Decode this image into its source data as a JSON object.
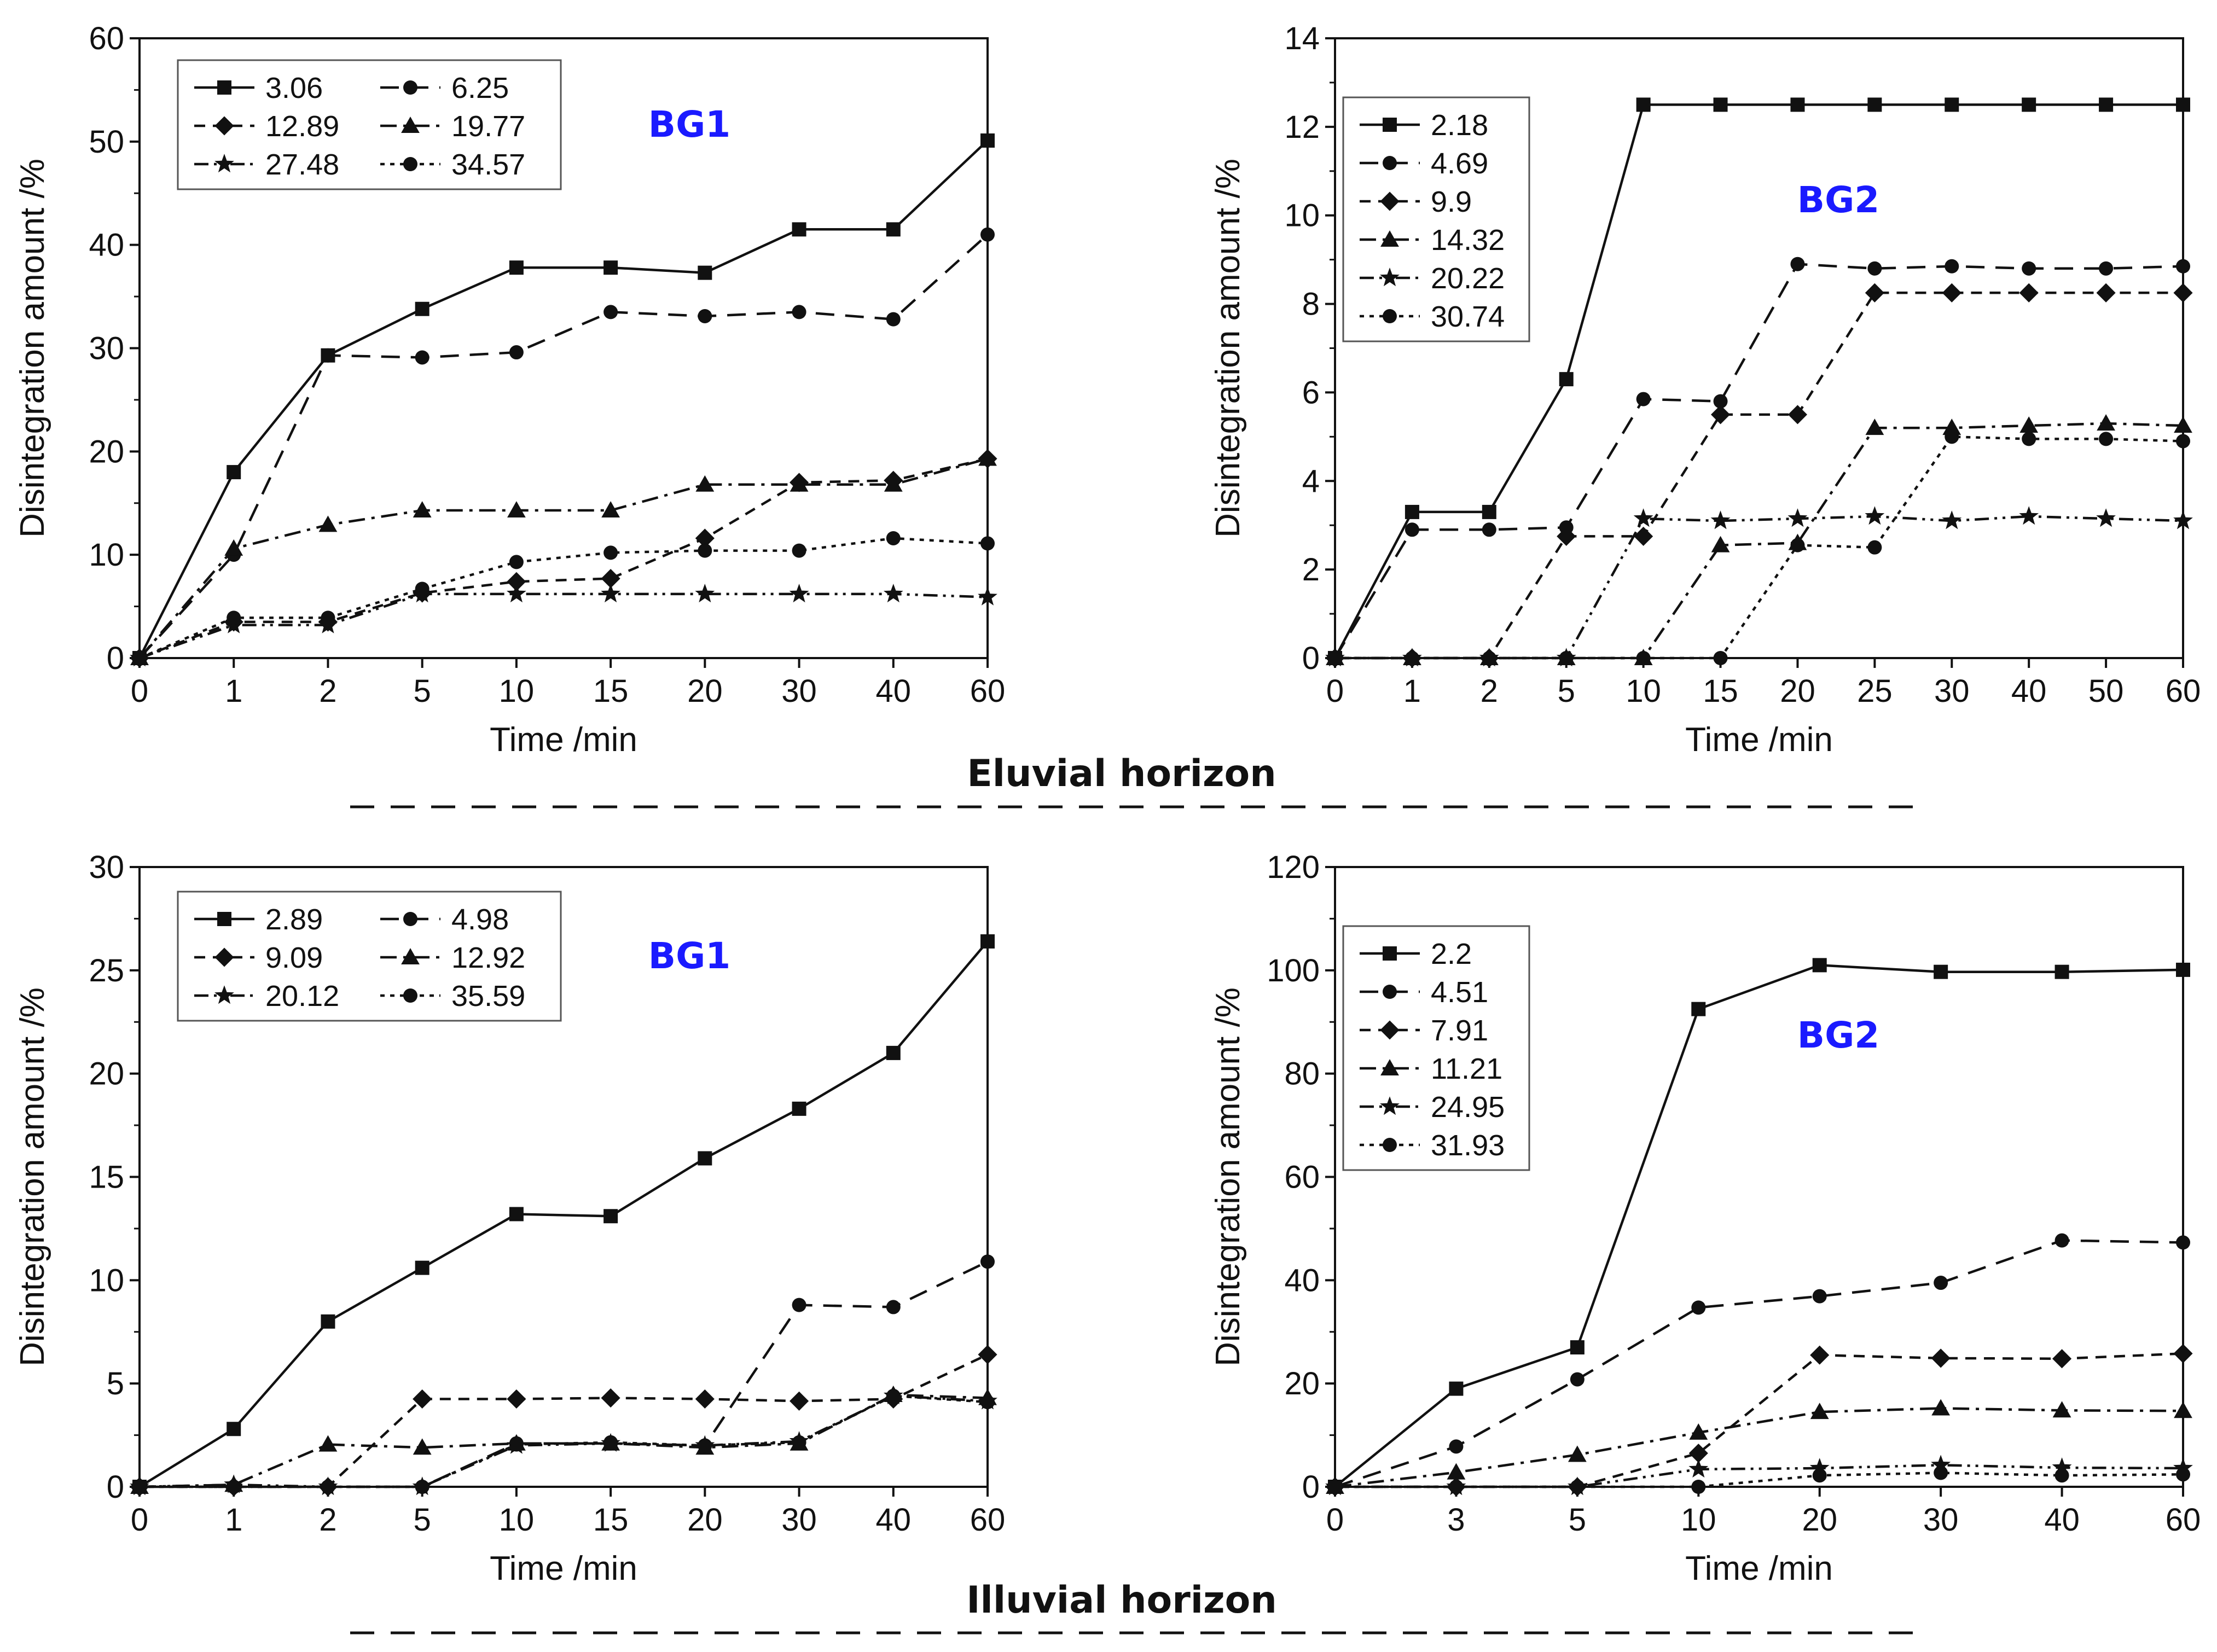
{
  "sections": {
    "top_title": "Eluvial horizon",
    "bottom_title": "Illuvial horizon"
  },
  "chart_data": [
    {
      "type": "line",
      "panel": "top-left",
      "title": "BG1",
      "xlabel": "Time /min",
      "ylabel": "Disintegration amount /%",
      "categories": [
        "0",
        "1",
        "2",
        "5",
        "10",
        "15",
        "20",
        "30",
        "40",
        "60"
      ],
      "ylim": [
        0,
        60
      ],
      "yticks": [
        0,
        10,
        20,
        30,
        40,
        50,
        60
      ],
      "legend_columns": 2,
      "series": [
        {
          "name": "3.06",
          "marker": "square",
          "dash": "solid",
          "values": [
            0,
            18,
            29.3,
            33.8,
            37.8,
            37.8,
            37.3,
            41.5,
            41.5,
            50.1
          ]
        },
        {
          "name": "6.25",
          "marker": "circle",
          "dash": "dash",
          "values": [
            0,
            10,
            29.3,
            29.1,
            29.6,
            33.5,
            33.1,
            33.5,
            32.8,
            41
          ]
        },
        {
          "name": "12.89",
          "marker": "diamond",
          "dash": "shortdash",
          "values": [
            0,
            3.5,
            3.5,
            6.3,
            7.4,
            7.7,
            11.6,
            17,
            17.2,
            19.3
          ]
        },
        {
          "name": "19.77",
          "marker": "triangle",
          "dash": "dashdot",
          "values": [
            0,
            10.6,
            12.9,
            14.3,
            14.3,
            14.3,
            16.8,
            16.8,
            16.8,
            19.3
          ]
        },
        {
          "name": "27.48",
          "marker": "star",
          "dash": "dashdotdot",
          "values": [
            0,
            3.2,
            3.2,
            6.2,
            6.2,
            6.2,
            6.2,
            6.2,
            6.2,
            5.9
          ]
        },
        {
          "name": "34.57",
          "marker": "circle",
          "dash": "dots",
          "values": [
            0,
            3.9,
            3.9,
            6.7,
            9.3,
            10.2,
            10.4,
            10.4,
            11.6,
            11.1
          ]
        }
      ]
    },
    {
      "type": "line",
      "panel": "top-right",
      "title": "BG2",
      "xlabel": "Time /min",
      "ylabel": "Disintegration amount /%",
      "categories": [
        "0",
        "1",
        "2",
        "5",
        "10",
        "15",
        "20",
        "25",
        "30",
        "40",
        "50",
        "60"
      ],
      "ylim": [
        0,
        14
      ],
      "yticks": [
        0,
        2,
        4,
        6,
        8,
        10,
        12,
        14
      ],
      "legend_columns": 1,
      "series": [
        {
          "name": "2.18",
          "marker": "square",
          "dash": "solid",
          "values": [
            0,
            3.3,
            3.3,
            6.3,
            12.5,
            12.5,
            12.5,
            12.5,
            12.5,
            12.5,
            12.5,
            12.5
          ]
        },
        {
          "name": "4.69",
          "marker": "circle",
          "dash": "dash",
          "values": [
            0,
            2.9,
            2.9,
            2.95,
            5.85,
            5.8,
            8.9,
            8.8,
            8.85,
            8.8,
            8.8,
            8.85
          ]
        },
        {
          "name": "9.9",
          "marker": "diamond",
          "dash": "shortdash",
          "values": [
            0,
            0,
            0,
            2.75,
            2.75,
            5.5,
            5.5,
            8.25,
            8.25,
            8.25,
            8.25,
            8.25
          ]
        },
        {
          "name": "14.32",
          "marker": "triangle",
          "dash": "dashdot",
          "values": [
            0,
            0,
            0,
            0,
            0,
            2.55,
            2.6,
            5.2,
            5.2,
            5.25,
            5.3,
            5.25
          ]
        },
        {
          "name": "20.22",
          "marker": "star",
          "dash": "dashdotdot",
          "values": [
            0,
            0,
            0,
            0,
            3.15,
            3.1,
            3.15,
            3.2,
            3.1,
            3.2,
            3.15,
            3.1
          ]
        },
        {
          "name": "30.74",
          "marker": "circle",
          "dash": "dots",
          "values": [
            0,
            0,
            0,
            0,
            0,
            0,
            2.55,
            2.5,
            5,
            4.95,
            4.95,
            4.9
          ]
        }
      ]
    },
    {
      "type": "line",
      "panel": "bottom-left",
      "title": "BG1",
      "xlabel": "Time /min",
      "ylabel": "Disintegration amount /%",
      "categories": [
        "0",
        "1",
        "2",
        "5",
        "10",
        "15",
        "20",
        "30",
        "40",
        "60"
      ],
      "ylim": [
        0,
        30
      ],
      "yticks": [
        0,
        5,
        10,
        15,
        20,
        25,
        30
      ],
      "legend_columns": 2,
      "series": [
        {
          "name": "2.89",
          "marker": "square",
          "dash": "solid",
          "values": [
            0,
            2.8,
            8,
            10.6,
            13.2,
            13.1,
            15.9,
            18.3,
            21,
            26.4
          ]
        },
        {
          "name": "4.98",
          "marker": "circle",
          "dash": "dash",
          "values": [
            0,
            0,
            0,
            0,
            2.1,
            2.1,
            2,
            8.8,
            8.7,
            10.9
          ]
        },
        {
          "name": "9.09",
          "marker": "diamond",
          "dash": "shortdash",
          "values": [
            0,
            0,
            0,
            4.25,
            4.25,
            4.3,
            4.25,
            4.15,
            4.25,
            6.4
          ]
        },
        {
          "name": "12.92",
          "marker": "triangle",
          "dash": "dashdot",
          "values": [
            0,
            0.1,
            2.05,
            1.9,
            2.1,
            2.1,
            1.9,
            2.1,
            4.45,
            4.3
          ]
        },
        {
          "name": "20.12",
          "marker": "star",
          "dash": "dashdotdot",
          "values": [
            0,
            0.1,
            0,
            0,
            2,
            2.1,
            2,
            2.2,
            4.4,
            4.15
          ]
        },
        {
          "name": "35.59",
          "marker": "circle",
          "dash": "dots",
          "values": [
            0,
            0,
            0,
            0,
            2.05,
            2.15,
            2,
            2.15,
            4.4,
            4.1
          ]
        }
      ]
    },
    {
      "type": "line",
      "panel": "bottom-right",
      "title": "BG2",
      "xlabel": "Time /min",
      "ylabel": "Disintegration amount /%",
      "categories": [
        "0",
        "3",
        "5",
        "10",
        "20",
        "30",
        "40",
        "60"
      ],
      "ylim": [
        0,
        120
      ],
      "yticks": [
        0,
        20,
        40,
        60,
        80,
        100,
        120
      ],
      "legend_columns": 1,
      "series": [
        {
          "name": "2.2",
          "marker": "square",
          "dash": "solid",
          "values": [
            0,
            19,
            27,
            92.5,
            101,
            99.7,
            99.7,
            100.1
          ]
        },
        {
          "name": "4.51",
          "marker": "circle",
          "dash": "dash",
          "values": [
            0,
            7.8,
            20.8,
            34.7,
            36.9,
            39.5,
            47.7,
            47.3
          ]
        },
        {
          "name": "7.91",
          "marker": "diamond",
          "dash": "shortdash",
          "values": [
            0,
            0,
            0,
            6.5,
            25.5,
            24.9,
            24.8,
            25.8
          ]
        },
        {
          "name": "11.21",
          "marker": "triangle",
          "dash": "dashdot",
          "values": [
            0,
            2.8,
            6.2,
            10.5,
            14.5,
            15.2,
            14.8,
            14.7
          ]
        },
        {
          "name": "24.95",
          "marker": "star",
          "dash": "dashdotdot",
          "values": [
            0,
            0,
            0,
            3.4,
            3.6,
            4.2,
            3.7,
            3.6
          ]
        },
        {
          "name": "31.93",
          "marker": "circle",
          "dash": "dots",
          "values": [
            0,
            0,
            0,
            0,
            2.2,
            2.7,
            2.2,
            2.4
          ]
        }
      ]
    }
  ]
}
